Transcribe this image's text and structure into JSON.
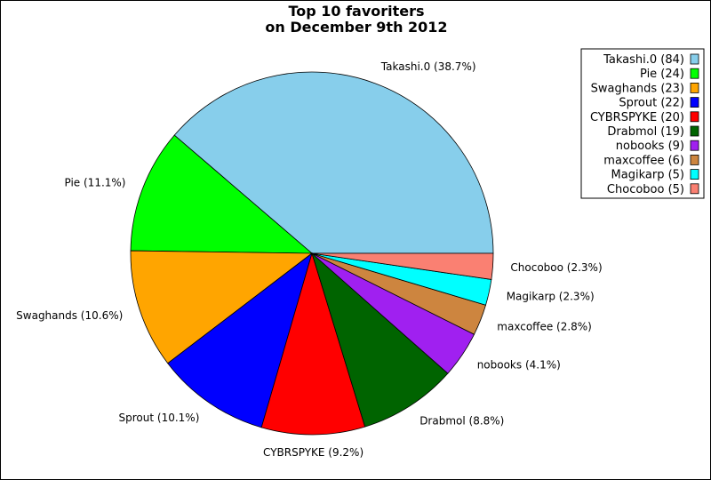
{
  "chart_data": {
    "type": "pie",
    "title_lines": [
      "Top 10 favoriters",
      "on December 9th 2012"
    ],
    "slices": [
      {
        "name": "Takashi.0",
        "value": 84,
        "percent_label": "38.7%",
        "color": "#87ceeb"
      },
      {
        "name": "Pie",
        "value": 24,
        "percent_label": "11.1%",
        "color": "#00ff00"
      },
      {
        "name": "Swaghands",
        "value": 23,
        "percent_label": "10.6%",
        "color": "#ffa500"
      },
      {
        "name": "Sprout",
        "value": 22,
        "percent_label": "10.1%",
        "color": "#0000ff"
      },
      {
        "name": "CYBRSPYKE",
        "value": 20,
        "percent_label": "9.2%",
        "color": "#ff0000"
      },
      {
        "name": "Drabmol",
        "value": 19,
        "percent_label": "8.8%",
        "color": "#006400"
      },
      {
        "name": "nobooks",
        "value": 9,
        "percent_label": "4.1%",
        "color": "#a020f0"
      },
      {
        "name": "maxcoffee",
        "value": 6,
        "percent_label": "2.8%",
        "color": "#cd853f"
      },
      {
        "name": "Magikarp",
        "value": 5,
        "percent_label": "2.3%",
        "color": "#00ffff"
      },
      {
        "name": "Chocoboo",
        "value": 5,
        "percent_label": "2.3%",
        "color": "#fa8072"
      }
    ],
    "legend": {
      "position": "top-right",
      "entries": [
        "Takashi.0 (84)",
        "Pie (24)",
        "Swaghands (23)",
        "Sprout (22)",
        "CYBRSPYKE (20)",
        "Drabmol (19)",
        "nobooks (9)",
        "maxcoffee (6)",
        "Magikarp (5)",
        "Chocoboo (5)"
      ]
    },
    "start_angle": "counterclockwise from 3 o'clock"
  }
}
